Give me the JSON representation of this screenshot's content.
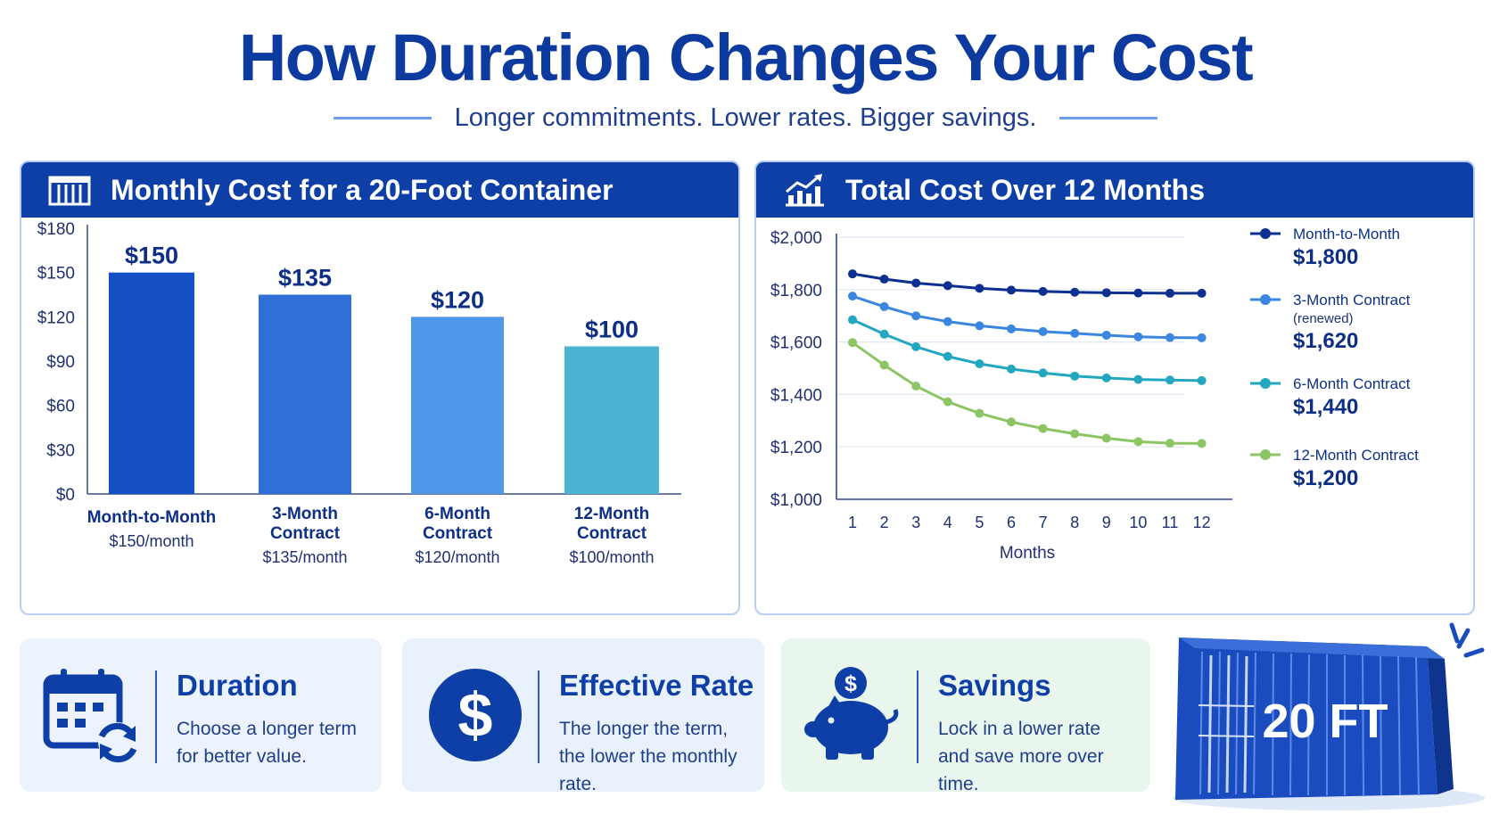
{
  "header": {
    "title": "How Duration Changes Your Cost",
    "subtitle": "Longer commitments. Lower rates. Bigger savings."
  },
  "colors": {
    "primary": "#0d3fa6",
    "bar_colors": [
      "#1450c4",
      "#2f6fd6",
      "#4f97e8",
      "#4cb4d2"
    ],
    "line_colors": [
      "#0d3090",
      "#3a86e0",
      "#22a7bf",
      "#8cc563"
    ]
  },
  "chart_data": [
    {
      "type": "bar",
      "title": "Monthly Cost for a 20-Foot Container",
      "icon": "container-stack-icon",
      "categories": [
        "Month-to-Month",
        "3-Month Contract",
        "6-Month Contract",
        "12-Month Contract"
      ],
      "category_lines": [
        [
          "Month-to-Month"
        ],
        [
          "3-Month",
          "Contract"
        ],
        [
          "6-Month",
          "Contract"
        ],
        [
          "12-Month",
          "Contract"
        ]
      ],
      "values": [
        150,
        135,
        120,
        100
      ],
      "data_labels": [
        "$150",
        "$135",
        "$120",
        "$100"
      ],
      "sub_labels": [
        "$150/month",
        "$135/month",
        "$120/month",
        "$100/month"
      ],
      "ylim": [
        0,
        180
      ],
      "yticks": [
        0,
        30,
        60,
        90,
        120,
        150,
        180
      ],
      "ytick_labels": [
        "$0",
        "$30",
        "$60",
        "$90",
        "$120",
        "$150",
        "$180"
      ],
      "grid": false
    },
    {
      "type": "line",
      "title": "Total Cost Over 12 Months",
      "icon": "growth-chart-icon",
      "xlabel": "Months",
      "x": [
        1,
        2,
        3,
        4,
        5,
        6,
        7,
        8,
        9,
        10,
        11,
        12
      ],
      "ylim": [
        1000,
        2000
      ],
      "yticks": [
        1000,
        1200,
        1400,
        1600,
        1800,
        2000
      ],
      "ytick_labels": [
        "$1,000",
        "$1,200",
        "$1,400",
        "$1,600",
        "$1,800",
        "$2,000"
      ],
      "grid": true,
      "legend_position": "right",
      "series": [
        {
          "name": "Month-to-Month",
          "note": "",
          "total": "$1,800",
          "values": [
            1860,
            1840,
            1825,
            1815,
            1805,
            1798,
            1793,
            1790,
            1788,
            1787,
            1786,
            1786
          ]
        },
        {
          "name": "3-Month Contract",
          "note": "(renewed)",
          "total": "$1,620",
          "values": [
            1775,
            1735,
            1700,
            1678,
            1662,
            1650,
            1640,
            1633,
            1626,
            1620,
            1617,
            1616
          ]
        },
        {
          "name": "6-Month Contract",
          "note": "",
          "total": "$1,440",
          "values": [
            1685,
            1630,
            1582,
            1545,
            1517,
            1497,
            1482,
            1470,
            1463,
            1457,
            1455,
            1453
          ]
        },
        {
          "name": "12-Month Contract",
          "note": "",
          "total": "$1,200",
          "values": [
            1598,
            1512,
            1432,
            1372,
            1328,
            1295,
            1270,
            1250,
            1233,
            1220,
            1214,
            1213
          ]
        }
      ]
    }
  ],
  "info_cards": [
    {
      "id": "duration",
      "title": "Duration",
      "lines": [
        "Choose a longer term",
        "for better value."
      ],
      "icon": "calendar-refresh-icon"
    },
    {
      "id": "rate",
      "title": "Effective Rate",
      "lines": [
        "The longer the term,",
        "the lower the monthly rate."
      ],
      "icon": "dollar-circle-icon"
    },
    {
      "id": "savings",
      "title": "Savings",
      "lines": [
        "Lock in a lower rate",
        "and save more over time."
      ],
      "icon": "piggy-bank-icon"
    }
  ],
  "container": {
    "label": "20 FT",
    "icon": "shipping-container-icon"
  }
}
